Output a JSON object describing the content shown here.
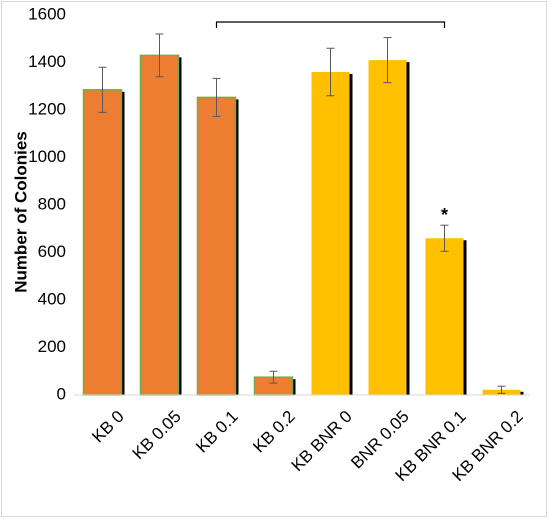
{
  "chart_data": {
    "type": "bar",
    "categories": [
      "KB 0",
      "KB 0.05",
      "KB  0.1",
      "KB 0.2",
      "KB BNR 0",
      "BNR 0.05",
      "KB BNR 0.1",
      "KB BNR 0.2"
    ],
    "values": [
      1285,
      1430,
      1253,
      75,
      1360,
      1410,
      660,
      22
    ],
    "errors": [
      95,
      90,
      80,
      25,
      100,
      95,
      55,
      15
    ],
    "colors": [
      "#ED7D31",
      "#ED7D31",
      "#ED7D31",
      "#ED7D31",
      "#FFC000",
      "#FFC000",
      "#FFC000",
      "#FFC000"
    ],
    "bar_outline_color": "#70AD47",
    "ylabel": "Number of Colonies",
    "xlabel": "",
    "title": "",
    "ylim": [
      0,
      1600
    ],
    "yticks": [
      0,
      200,
      400,
      600,
      800,
      1000,
      1200,
      1400,
      1600
    ],
    "grid": false,
    "annotations": [
      {
        "category": "KB BNR 0.1",
        "text": "*"
      }
    ],
    "bracket": {
      "from": "KB  0.1",
      "to": "KB BNR 0.1"
    }
  }
}
